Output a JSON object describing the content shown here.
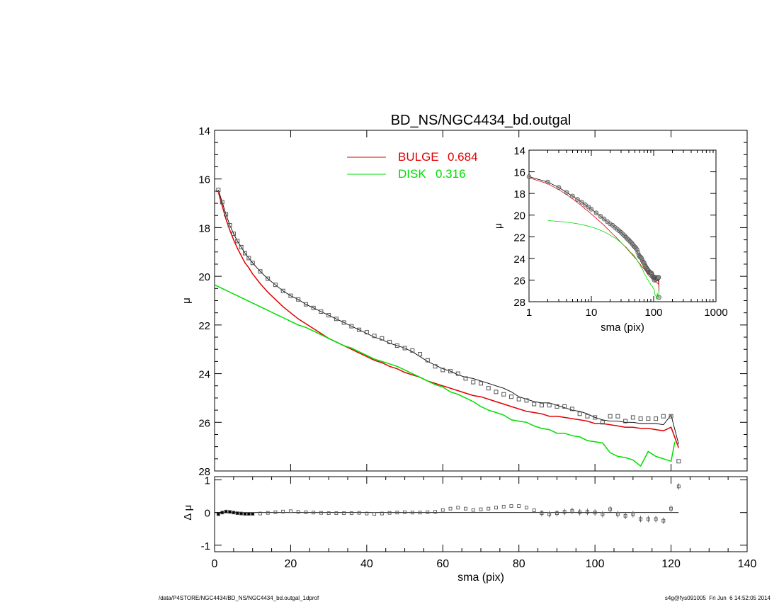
{
  "chart_data": [
    {
      "type": "scatter",
      "panel": "main",
      "title": "BD_NS/NGC4434_bd.outgal",
      "xlabel": "",
      "ylabel": "μ",
      "xlim": [
        0,
        140
      ],
      "ylim": [
        28,
        14
      ],
      "y_reversed": true,
      "x_ticks": [
        0,
        20,
        40,
        60,
        80,
        100,
        120,
        140
      ],
      "y_ticks": [
        14,
        16,
        18,
        20,
        22,
        24,
        26,
        28
      ],
      "legend": [
        {
          "name": "BULGE",
          "value": "0.684",
          "color": "#e00000"
        },
        {
          "name": "DISK",
          "value": "0.316",
          "color": "#00dd00"
        }
      ],
      "legend_position": "top-center",
      "series": [
        {
          "name": "data",
          "style": "squares",
          "x": [
            1,
            2,
            3,
            4,
            5,
            6,
            7,
            8,
            9,
            10,
            12,
            14,
            16,
            18,
            20,
            22,
            24,
            26,
            28,
            30,
            32,
            34,
            36,
            38,
            40,
            42,
            44,
            46,
            48,
            50,
            52,
            54,
            56,
            58,
            60,
            62,
            64,
            66,
            68,
            70,
            72,
            74,
            76,
            78,
            80,
            82,
            84,
            86,
            88,
            90,
            92,
            94,
            96,
            98,
            100,
            102,
            104,
            106,
            108,
            110,
            112,
            114,
            116,
            118,
            120,
            122
          ],
          "y": [
            16.45,
            16.95,
            17.45,
            17.9,
            18.25,
            18.55,
            18.8,
            19.05,
            19.25,
            19.45,
            19.8,
            20.1,
            20.35,
            20.6,
            20.8,
            20.95,
            21.15,
            21.3,
            21.45,
            21.6,
            21.75,
            21.9,
            22.05,
            22.2,
            22.3,
            22.45,
            22.55,
            22.7,
            22.85,
            22.95,
            23.05,
            23.2,
            23.45,
            23.7,
            23.85,
            23.9,
            24.0,
            24.2,
            24.35,
            24.4,
            24.6,
            24.75,
            24.85,
            24.95,
            25.05,
            25.1,
            25.25,
            25.3,
            25.3,
            25.35,
            25.35,
            25.45,
            25.65,
            25.75,
            25.8,
            26.0,
            25.75,
            25.75,
            25.95,
            25.8,
            25.85,
            25.85,
            25.85,
            25.75,
            25.75,
            27.6
          ]
        },
        {
          "name": "model",
          "style": "line",
          "color": "#000000",
          "x": [
            1,
            2,
            3,
            4,
            5,
            6,
            7,
            8,
            9,
            10,
            12,
            14,
            16,
            18,
            20,
            22,
            24,
            26,
            28,
            30,
            32,
            34,
            36,
            38,
            40,
            42,
            44,
            46,
            48,
            50,
            52,
            54,
            56,
            58,
            60,
            62,
            64,
            66,
            68,
            70,
            72,
            74,
            76,
            78,
            80,
            82,
            84,
            86,
            88,
            90,
            92,
            94,
            96,
            98,
            100,
            102,
            104,
            106,
            108,
            110,
            112,
            114,
            116,
            118,
            120,
            122
          ],
          "y": [
            16.45,
            16.95,
            17.45,
            17.9,
            18.25,
            18.55,
            18.8,
            19.05,
            19.25,
            19.45,
            19.8,
            20.1,
            20.35,
            20.6,
            20.8,
            20.95,
            21.15,
            21.3,
            21.45,
            21.6,
            21.75,
            21.9,
            22.05,
            22.2,
            22.35,
            22.5,
            22.6,
            22.75,
            22.85,
            22.95,
            23.1,
            23.3,
            23.5,
            23.65,
            23.8,
            23.9,
            24.05,
            24.15,
            24.2,
            24.3,
            24.4,
            24.5,
            24.6,
            24.75,
            24.95,
            25.05,
            25.15,
            25.2,
            25.2,
            25.3,
            25.4,
            25.5,
            25.55,
            25.65,
            25.8,
            25.9,
            25.95,
            25.95,
            26.0,
            26.0,
            26.05,
            26.05,
            26.05,
            26.1,
            25.7,
            26.9
          ]
        },
        {
          "name": "BULGE",
          "style": "line",
          "color": "#e00000",
          "x": [
            1,
            2,
            3,
            4,
            5,
            6,
            7,
            8,
            9,
            10,
            12,
            14,
            16,
            18,
            20,
            22,
            24,
            26,
            28,
            30,
            32,
            34,
            36,
            38,
            40,
            42,
            44,
            46,
            48,
            50,
            52,
            54,
            56,
            58,
            60,
            62,
            64,
            66,
            68,
            70,
            72,
            74,
            76,
            78,
            80,
            82,
            84,
            86,
            88,
            90,
            92,
            94,
            96,
            98,
            100,
            102,
            104,
            106,
            108,
            110,
            112,
            114,
            116,
            118,
            120,
            122
          ],
          "y": [
            16.55,
            17.1,
            17.65,
            18.1,
            18.5,
            18.85,
            19.15,
            19.45,
            19.65,
            19.9,
            20.3,
            20.65,
            20.95,
            21.25,
            21.5,
            21.75,
            21.95,
            22.15,
            22.35,
            22.55,
            22.7,
            22.85,
            23.0,
            23.15,
            23.3,
            23.45,
            23.55,
            23.7,
            23.8,
            23.95,
            24.05,
            24.15,
            24.3,
            24.4,
            24.5,
            24.6,
            24.7,
            24.8,
            24.9,
            24.95,
            25.05,
            25.15,
            25.25,
            25.35,
            25.45,
            25.55,
            25.6,
            25.65,
            25.75,
            25.75,
            25.8,
            25.85,
            25.9,
            25.95,
            26.05,
            26.05,
            26.1,
            26.15,
            26.2,
            26.2,
            26.25,
            26.25,
            26.3,
            26.35,
            26.2,
            27.05
          ]
        },
        {
          "name": "DISK",
          "style": "line",
          "color": "#00dd00",
          "x": [
            0,
            2,
            4,
            6,
            8,
            10,
            12,
            14,
            16,
            18,
            20,
            22,
            24,
            26,
            28,
            30,
            32,
            34,
            36,
            38,
            40,
            42,
            44,
            46,
            48,
            50,
            52,
            54,
            56,
            58,
            60,
            62,
            64,
            66,
            68,
            70,
            72,
            74,
            76,
            78,
            80,
            82,
            84,
            86,
            88,
            90,
            92,
            94,
            96,
            98,
            100,
            102,
            104,
            106,
            108,
            110,
            112,
            114,
            116,
            118,
            120,
            121
          ],
          "y": [
            20.35,
            20.5,
            20.65,
            20.8,
            20.95,
            21.1,
            21.25,
            21.4,
            21.55,
            21.7,
            21.85,
            22.0,
            22.1,
            22.25,
            22.4,
            22.55,
            22.7,
            22.85,
            22.95,
            23.1,
            23.25,
            23.4,
            23.5,
            23.6,
            23.7,
            23.85,
            24.0,
            24.15,
            24.3,
            24.45,
            24.55,
            24.75,
            24.85,
            25.0,
            25.15,
            25.35,
            25.5,
            25.6,
            25.7,
            25.9,
            25.95,
            26.0,
            26.15,
            26.25,
            26.3,
            26.45,
            26.45,
            26.55,
            26.6,
            26.75,
            26.8,
            26.85,
            27.25,
            27.4,
            27.45,
            27.55,
            27.8,
            27.2,
            27.4,
            27.5,
            27.6,
            26.8
          ]
        }
      ]
    },
    {
      "type": "scatter",
      "panel": "inset",
      "xlabel": "sma (pix)",
      "ylabel": "μ",
      "x_scale": "log",
      "xlim": [
        1,
        1000
      ],
      "ylim": [
        28,
        14
      ],
      "y_reversed": true,
      "x_ticks": [
        1,
        10,
        100,
        1000
      ],
      "y_ticks": [
        14,
        16,
        18,
        20,
        22,
        24,
        26,
        28
      ],
      "legend_position": "top-right"
    },
    {
      "type": "scatter",
      "panel": "residual",
      "xlabel": "sma (pix)",
      "ylabel": "Δ μ",
      "xlim": [
        0,
        140
      ],
      "ylim": [
        -1.2,
        1.1
      ],
      "x_ticks": [
        0,
        20,
        40,
        60,
        80,
        100,
        120,
        140
      ],
      "y_ticks": [
        -1,
        0,
        1
      ],
      "series": [
        {
          "name": "residual",
          "style": "squares-with-errorbars",
          "x": [
            1,
            2,
            3,
            4,
            5,
            6,
            7,
            8,
            9,
            10,
            12,
            14,
            16,
            18,
            20,
            22,
            24,
            26,
            28,
            30,
            32,
            34,
            36,
            38,
            40,
            42,
            44,
            46,
            48,
            50,
            52,
            54,
            56,
            58,
            60,
            62,
            64,
            66,
            68,
            70,
            72,
            74,
            76,
            78,
            80,
            82,
            84,
            86,
            88,
            90,
            92,
            94,
            96,
            98,
            100,
            102,
            104,
            106,
            108,
            110,
            112,
            114,
            116,
            118,
            120,
            122
          ],
          "y": [
            -0.05,
            0.0,
            0.03,
            0.02,
            0.0,
            -0.02,
            -0.03,
            -0.04,
            -0.04,
            -0.04,
            -0.03,
            -0.01,
            0.01,
            0.03,
            0.04,
            0.02,
            0.01,
            0.0,
            -0.01,
            -0.02,
            -0.02,
            -0.02,
            -0.02,
            -0.01,
            -0.03,
            -0.04,
            -0.03,
            -0.01,
            0.0,
            0.01,
            0.0,
            0.0,
            0.01,
            0.02,
            0.08,
            0.12,
            0.15,
            0.12,
            0.08,
            0.1,
            0.12,
            0.15,
            0.18,
            0.2,
            0.2,
            0.15,
            0.07,
            -0.02,
            -0.05,
            -0.02,
            0.02,
            0.05,
            0.01,
            0.02,
            0.0,
            -0.05,
            0.1,
            -0.05,
            -0.1,
            -0.05,
            -0.2,
            -0.2,
            -0.2,
            -0.25,
            0.12,
            0.8
          ]
        },
        {
          "name": "zero",
          "style": "line",
          "x": [
            0,
            122
          ],
          "y": [
            0,
            0
          ]
        }
      ]
    }
  ],
  "footer": {
    "left": "/data/P4STORE/NGC4434/BD_NS/NGC4434_bd.outgal_1dprof",
    "right": "s4g@fys091005  Fri Jun  6 14:52:05 2014"
  }
}
